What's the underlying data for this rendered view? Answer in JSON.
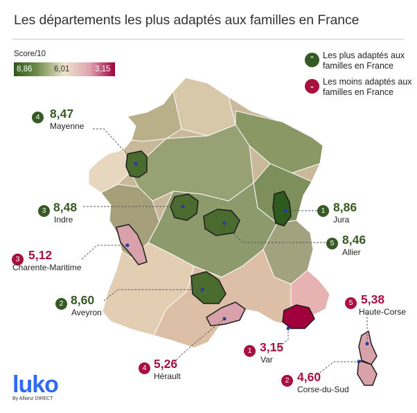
{
  "title": "Les départements les plus adaptés aux familles en France",
  "legend": {
    "scale_label": "Score/10",
    "scale_max": "8,86",
    "scale_mid": "6,01",
    "scale_min": "3,15",
    "best_label": "Les plus adaptés aux familles en France",
    "worst_label": "Les moins adaptés aux familles en France",
    "colors": {
      "best": "#365a23",
      "worst": "#a8103f"
    }
  },
  "top": [
    {
      "rank": "1",
      "score": "8,86",
      "name": "Jura"
    },
    {
      "rank": "2",
      "score": "8,60",
      "name": "Aveyron"
    },
    {
      "rank": "3",
      "score": "8,48",
      "name": "Indre"
    },
    {
      "rank": "4",
      "score": "8,47",
      "name": "Mayenne"
    },
    {
      "rank": "5",
      "score": "8,46",
      "name": "Allier"
    }
  ],
  "bottom": [
    {
      "rank": "1",
      "score": "3,15",
      "name": "Var"
    },
    {
      "rank": "2",
      "score": "4,60",
      "name": "Corse-du-Sud"
    },
    {
      "rank": "3",
      "score": "5,12",
      "name": "Charente-Maritime"
    },
    {
      "rank": "4",
      "score": "5,26",
      "name": "Hérault"
    },
    {
      "rank": "5",
      "score": "5,38",
      "name": "Haute-Corse"
    }
  ],
  "logo": {
    "word": "luko",
    "sub": "By Allianz DIRECT"
  }
}
